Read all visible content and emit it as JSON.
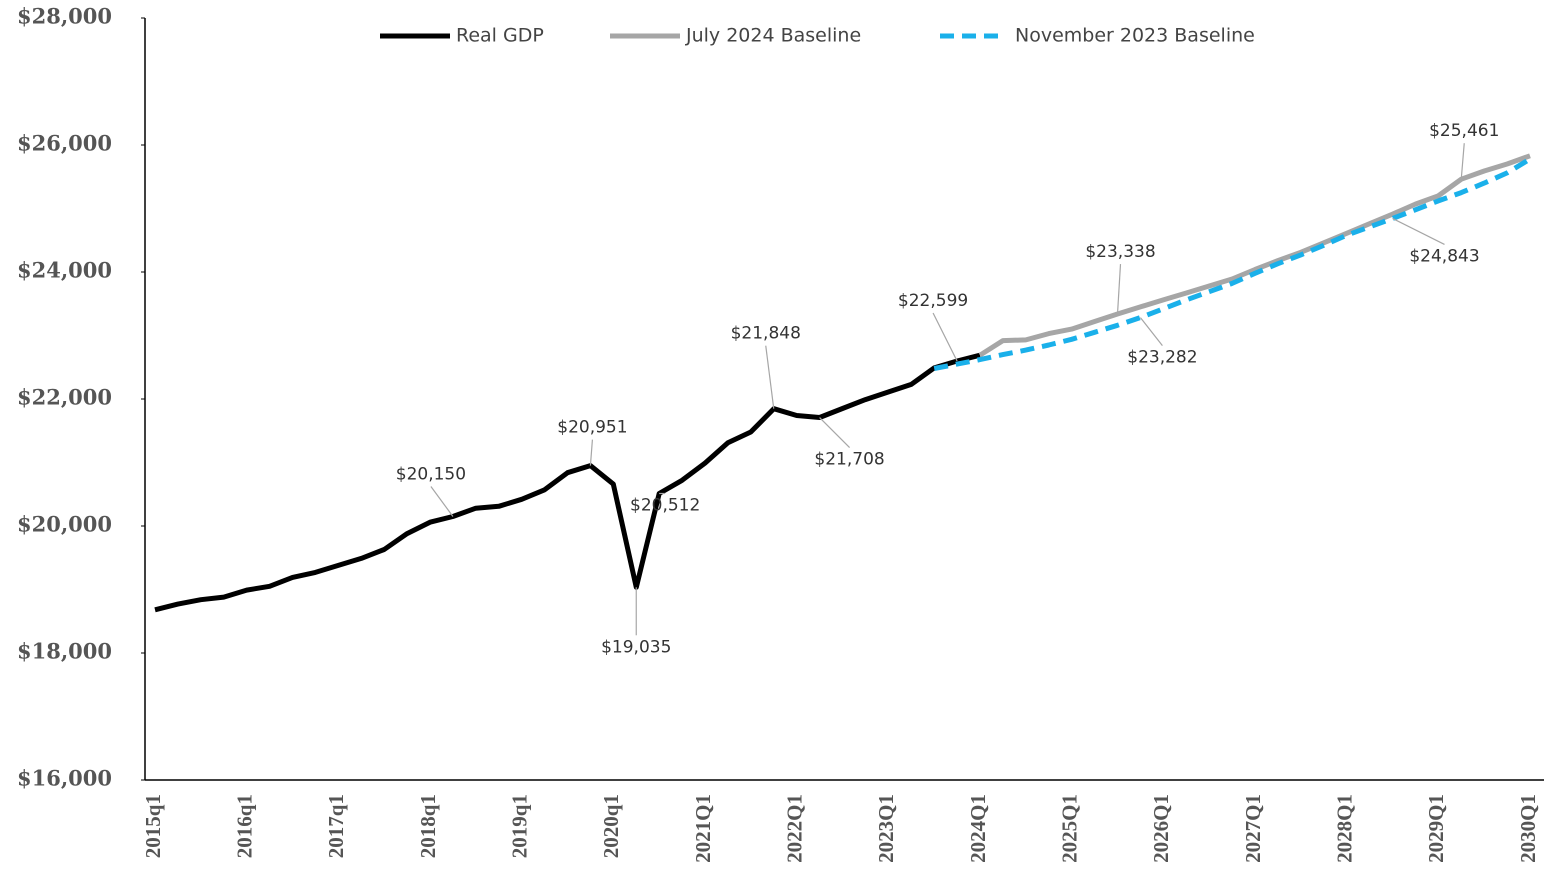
{
  "chart_data": {
    "type": "line",
    "categories": [
      "2015q1",
      null,
      null,
      null,
      "2016q1",
      null,
      null,
      null,
      "2017q1",
      null,
      null,
      null,
      "2018q1",
      null,
      null,
      null,
      "2019q1",
      null,
      null,
      null,
      "2020q1",
      null,
      null,
      null,
      "2021Q1",
      null,
      null,
      null,
      "2022Q1",
      null,
      null,
      null,
      "2023Q1",
      null,
      null,
      null,
      "2024Q1",
      null,
      null,
      null,
      "2025Q1",
      null,
      null,
      null,
      "2026Q1",
      null,
      null,
      null,
      "2027Q1",
      null,
      null,
      null,
      "2028Q1",
      null,
      null,
      null,
      "2029Q1",
      null,
      null,
      null,
      "2030Q1"
    ],
    "series": [
      {
        "name": "Real GDP",
        "color": "#000000",
        "dash": false,
        "values": [
          18680,
          18770,
          18840,
          18880,
          18990,
          19050,
          19190,
          19270,
          19380,
          19490,
          19630,
          19880,
          20060,
          20150,
          20280,
          20310,
          20420,
          20570,
          20840,
          20951,
          20660,
          19035,
          20512,
          20720,
          20990,
          21310,
          21480,
          21848,
          21740,
          21708,
          21850,
          21990,
          22110,
          22230,
          22490,
          22599,
          22690,
          null,
          null,
          null,
          null,
          null,
          null,
          null,
          null,
          null,
          null,
          null,
          null,
          null,
          null,
          null,
          null,
          null,
          null,
          null,
          null,
          null,
          null,
          null,
          null
        ],
        "value_labels": [
          null,
          null,
          null,
          null,
          null,
          null,
          null,
          null,
          null,
          null,
          null,
          null,
          null,
          "$20,150",
          null,
          null,
          null,
          null,
          null,
          "$20,951",
          null,
          "$19,035",
          "$20,512",
          null,
          null,
          null,
          null,
          "$21,848",
          null,
          "$21,708",
          null,
          null,
          null,
          null,
          null,
          "$22,599",
          null,
          null,
          null,
          null,
          null,
          null,
          null,
          null,
          null,
          null,
          null,
          null,
          null,
          null,
          null,
          null,
          null,
          null,
          null,
          null,
          null,
          null,
          null,
          null,
          null
        ]
      },
      {
        "name": "July 2024 Baseline",
        "color": "#a6a6a6",
        "dash": false,
        "values": [
          null,
          null,
          null,
          null,
          null,
          null,
          null,
          null,
          null,
          null,
          null,
          null,
          null,
          null,
          null,
          null,
          null,
          null,
          null,
          null,
          null,
          null,
          null,
          null,
          null,
          null,
          null,
          null,
          null,
          null,
          null,
          null,
          null,
          null,
          null,
          null,
          22690,
          22920,
          22930,
          23030,
          23100,
          23220,
          23338,
          23450,
          23560,
          23670,
          23780,
          23890,
          24040,
          24180,
          24310,
          24460,
          24610,
          24760,
          24910,
          25070,
          25200,
          25461,
          25590,
          25700,
          25830
        ],
        "value_labels": [
          null,
          null,
          null,
          null,
          null,
          null,
          null,
          null,
          null,
          null,
          null,
          null,
          null,
          null,
          null,
          null,
          null,
          null,
          null,
          null,
          null,
          null,
          null,
          null,
          null,
          null,
          null,
          null,
          null,
          null,
          null,
          null,
          null,
          null,
          null,
          null,
          null,
          null,
          null,
          null,
          null,
          null,
          "$23,338",
          null,
          null,
          null,
          null,
          null,
          null,
          null,
          null,
          null,
          null,
          null,
          null,
          null,
          null,
          "$25,461",
          null,
          null,
          null
        ]
      },
      {
        "name": "November 2023 Baseline",
        "color": "#1ab0ea",
        "dash": true,
        "values": [
          null,
          null,
          null,
          null,
          null,
          null,
          null,
          null,
          null,
          null,
          null,
          null,
          null,
          null,
          null,
          null,
          null,
          null,
          null,
          null,
          null,
          null,
          null,
          null,
          null,
          null,
          null,
          null,
          null,
          null,
          null,
          null,
          null,
          null,
          22480,
          22550,
          22620,
          22700,
          22770,
          22850,
          22940,
          23050,
          23160,
          23282,
          23420,
          23560,
          23690,
          23820,
          23980,
          24130,
          24270,
          24420,
          24580,
          24710,
          24843,
          24980,
          25120,
          25250,
          25400,
          25560,
          25780
        ],
        "value_labels": [
          null,
          null,
          null,
          null,
          null,
          null,
          null,
          null,
          null,
          null,
          null,
          null,
          null,
          null,
          null,
          null,
          null,
          null,
          null,
          null,
          null,
          null,
          null,
          null,
          null,
          null,
          null,
          null,
          null,
          null,
          null,
          null,
          null,
          null,
          null,
          null,
          null,
          null,
          null,
          null,
          null,
          null,
          null,
          "$23,282",
          null,
          null,
          null,
          null,
          null,
          null,
          null,
          null,
          null,
          null,
          "$24,843",
          null,
          null,
          null,
          null,
          null,
          null
        ]
      }
    ],
    "ylim": [
      16000,
      28000
    ],
    "yticks": [
      {
        "value": 16000,
        "label": "$16,000"
      },
      {
        "value": 18000,
        "label": "$18,000"
      },
      {
        "value": 20000,
        "label": "$20,000"
      },
      {
        "value": 22000,
        "label": "$22,000"
      },
      {
        "value": 24000,
        "label": "$24,000"
      },
      {
        "value": 26000,
        "label": "$26,000"
      },
      {
        "value": 28000,
        "label": "$28,000"
      }
    ],
    "grid": false,
    "legend": "top"
  }
}
